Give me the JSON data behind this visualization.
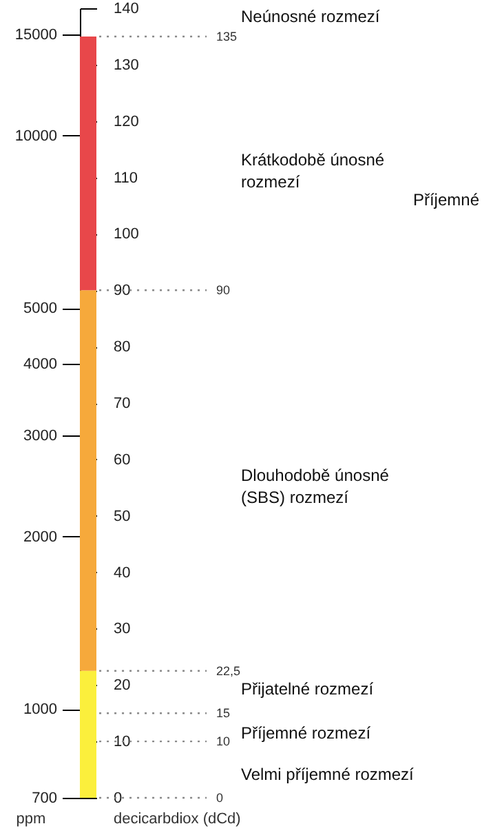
{
  "chart_data": {
    "type": "bar",
    "stacked": true,
    "categories": [
      null
    ],
    "series": [
      {
        "color": "#fbef3c",
        "values": [
          22.5
        ]
      },
      {
        "color": "#f6a93b",
        "values": [
          67.5
        ]
      },
      {
        "color": "#e8474a",
        "values": [
          45
        ]
      }
    ],
    "ylabel": "decicarbdiox (dCd)",
    "y2label": "ppm",
    "ylim": [
      0,
      140
    ],
    "yticks": [
      0,
      10,
      20,
      30,
      40,
      50,
      60,
      70,
      80,
      90,
      100,
      110,
      120,
      130,
      140
    ],
    "y2lim": [
      700,
      16670
    ],
    "y2ticks": [
      700,
      1000,
      2000,
      3000,
      4000,
      5000,
      10000,
      15000
    ],
    "log": "y2",
    "ref_lines": [
      {
        "axis": "y",
        "value": 0,
        "label": "0",
        "line_style": "dotted"
      },
      {
        "axis": "y",
        "value": 10,
        "label": "10",
        "line_style": "dotted"
      },
      {
        "axis": "y",
        "value": 15,
        "label": "15",
        "line_style": "dotted"
      },
      {
        "axis": "y",
        "value": 22.5,
        "label": "22,5",
        "line_style": "dotted"
      },
      {
        "axis": "y",
        "value": 90,
        "label": "90",
        "line_style": "dotted"
      },
      {
        "axis": "y",
        "value": 135,
        "label": "135",
        "line_style": "dotted"
      }
    ],
    "annotations": [
      "Neúnosné rozmezí",
      "Krátkodobě únosné rozmezí",
      "Příjemné",
      "Dlouhodobě únosné (SBS) rozmezí",
      "Přijatelné  rozmezí",
      "Příjemné  rozmezí",
      "Velmi příjemné rozmezí"
    ]
  }
}
